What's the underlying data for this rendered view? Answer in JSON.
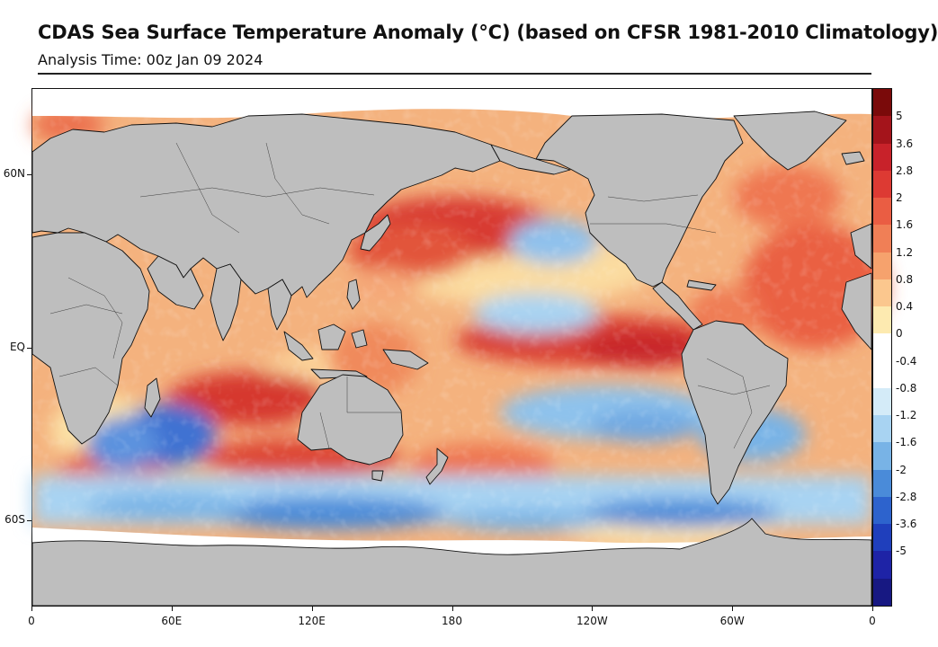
{
  "header": {
    "title": "CDAS Sea Surface Temperature Anomaly (°C) (based on CFSR 1981-2010 Climatology)",
    "subtitle": "Analysis Time: 00z Jan 09 2024"
  },
  "map": {
    "lat_range": [
      -90,
      90
    ],
    "lon_range": [
      0,
      360
    ],
    "y_axis_labels": [
      {
        "text": "60N",
        "lat": 60
      },
      {
        "text": "EQ",
        "lat": 0
      },
      {
        "text": "60S",
        "lat": -60
      }
    ],
    "x_axis_labels": [
      {
        "text": "0",
        "lon": 0
      },
      {
        "text": "60E",
        "lon": 60
      },
      {
        "text": "120E",
        "lon": 120
      },
      {
        "text": "180",
        "lon": 180
      },
      {
        "text": "120W",
        "lon": 240
      },
      {
        "text": "60W",
        "lon": 300
      },
      {
        "text": "0",
        "lon": 360
      }
    ],
    "colors": {
      "land": "#bebebe",
      "coast": "#111111",
      "sea_ice": "#ffffff",
      "warm_base": "#f4b27e"
    }
  },
  "colorbar": {
    "labels": [
      "5",
      "3.6",
      "2.8",
      "2",
      "1.6",
      "1.2",
      "0.8",
      "0.4",
      "0",
      "-0.4",
      "-0.8",
      "-1.2",
      "-1.6",
      "-2",
      "-2.8",
      "-3.6",
      "-5"
    ],
    "colors": [
      "#7a0a0a",
      "#a4141b",
      "#c8222a",
      "#dd3a33",
      "#ea5d43",
      "#f07f56",
      "#f6a26d",
      "#fbc78e",
      "#fdeab0",
      "#ffffff",
      "#ffffff",
      "#d4ebf8",
      "#a8d3f2",
      "#78b3e6",
      "#4a8bd9",
      "#2d63cd",
      "#1f3fbc",
      "#1e23a6",
      "#171882"
    ]
  }
}
